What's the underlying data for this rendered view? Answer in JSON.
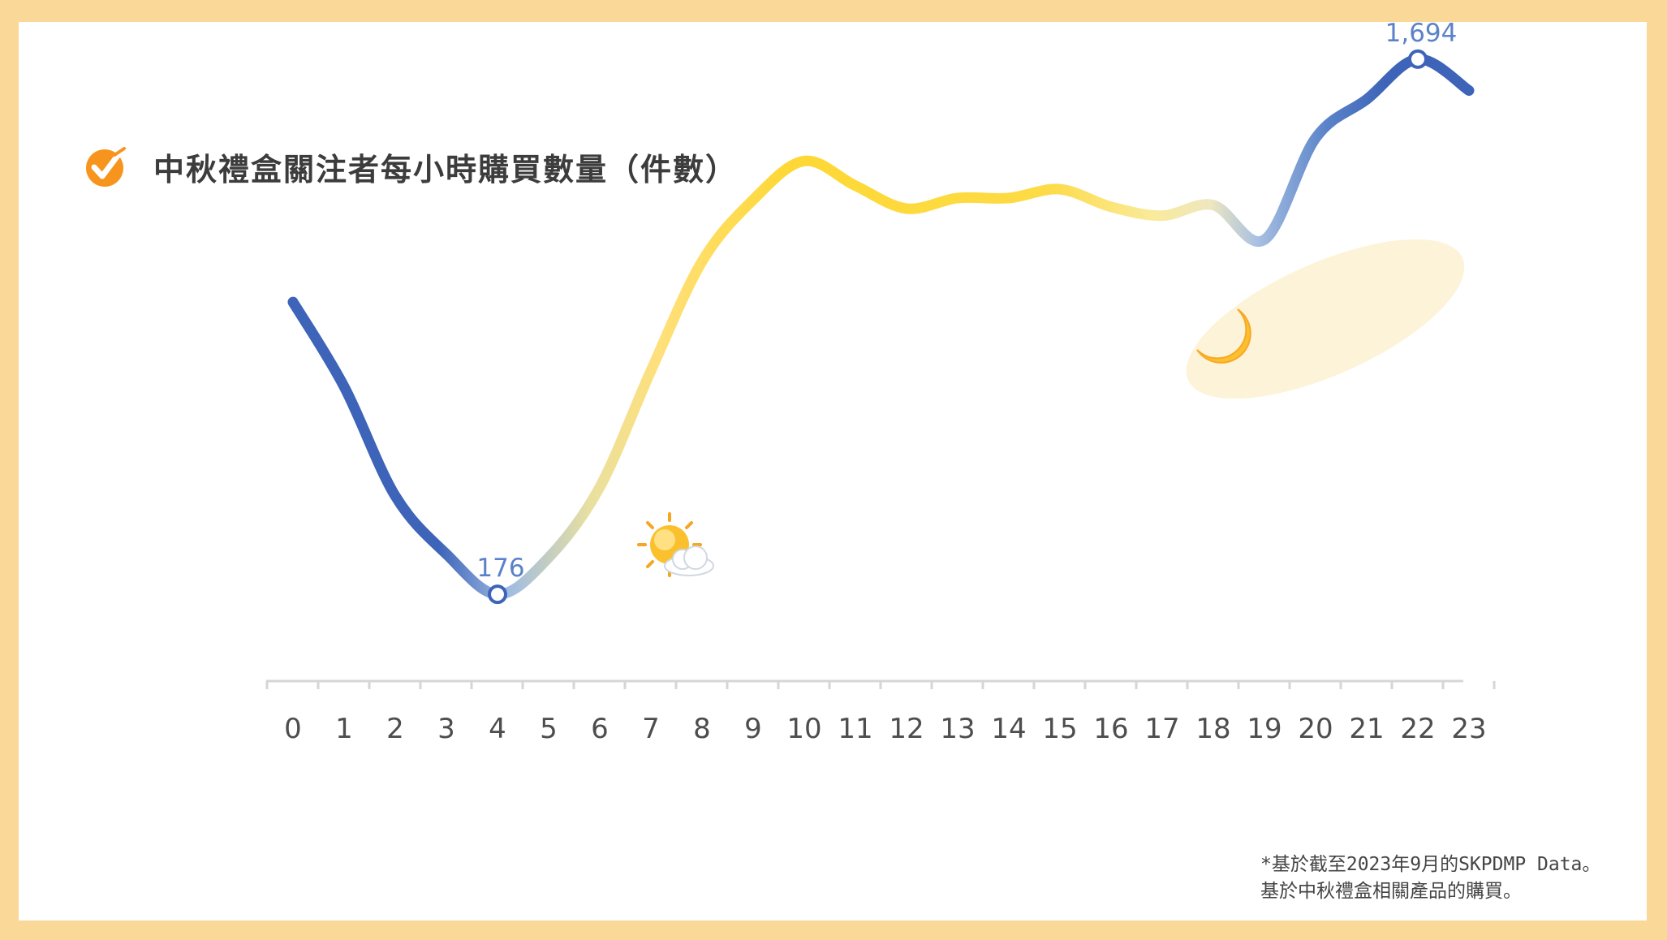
{
  "title": "中秋禮盒關注者每小時購買數量（件數）",
  "colors": {
    "frame": "#f9d898",
    "blue": "#3d64b8",
    "yellow": "#fdd835",
    "accent_orange": "#f7941d"
  },
  "icons": {
    "header": "check-circle-icon",
    "day": "sun-behind-cloud-icon",
    "night": "crescent-moon-icon"
  },
  "chart_data": {
    "type": "line",
    "x_label": "",
    "y_label": "",
    "grid": false,
    "x": [
      0,
      1,
      2,
      3,
      4,
      5,
      6,
      7,
      8,
      9,
      10,
      11,
      12,
      13,
      14,
      15,
      16,
      17,
      18,
      19,
      20,
      21,
      22,
      23
    ],
    "values": [
      1005,
      765,
      455,
      290,
      176,
      280,
      480,
      810,
      1120,
      1295,
      1405,
      1335,
      1270,
      1300,
      1300,
      1325,
      1275,
      1250,
      1280,
      1182,
      1470,
      1580,
      1694,
      1605
    ],
    "ylim": [
      0,
      2000
    ],
    "annotations": [
      {
        "x": 4,
        "label": "176",
        "type": "min"
      },
      {
        "x": 22,
        "label": "1,694",
        "type": "max"
      }
    ]
  },
  "footnote": {
    "line1": "*基於截至2023年9月的SKPDMP Data。",
    "line2": "基於中秋禮盒相關產品的購買。"
  }
}
